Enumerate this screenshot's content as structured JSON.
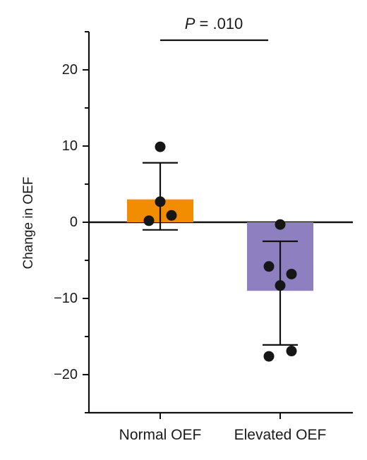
{
  "chart_data": {
    "type": "bar",
    "categories": [
      "Normal OEF",
      "Elevated OEF"
    ],
    "values": [
      3,
      -9
    ],
    "colors": [
      "#f28c00",
      "#8e80c0"
    ],
    "error_bars": [
      {
        "lower": -1,
        "upper": 7.8
      },
      {
        "lower": -16.1,
        "upper": -2.5
      }
    ],
    "points": [
      [
        9.9,
        2.7,
        0.9,
        0.2
      ],
      [
        -0.3,
        -5.8,
        -6.8,
        -8.3,
        -16.9,
        -17.6
      ]
    ],
    "ylabel": "Change in OEF",
    "ylim": [
      -25,
      25
    ],
    "yticks": [
      20,
      10,
      0,
      -10,
      -20
    ],
    "ytick_labels": [
      "20",
      "10",
      "0",
      "−10",
      "−20"
    ],
    "annotation": {
      "p_symbol": "P",
      "p_value": "= .010"
    },
    "grid": false,
    "legend": "none"
  }
}
